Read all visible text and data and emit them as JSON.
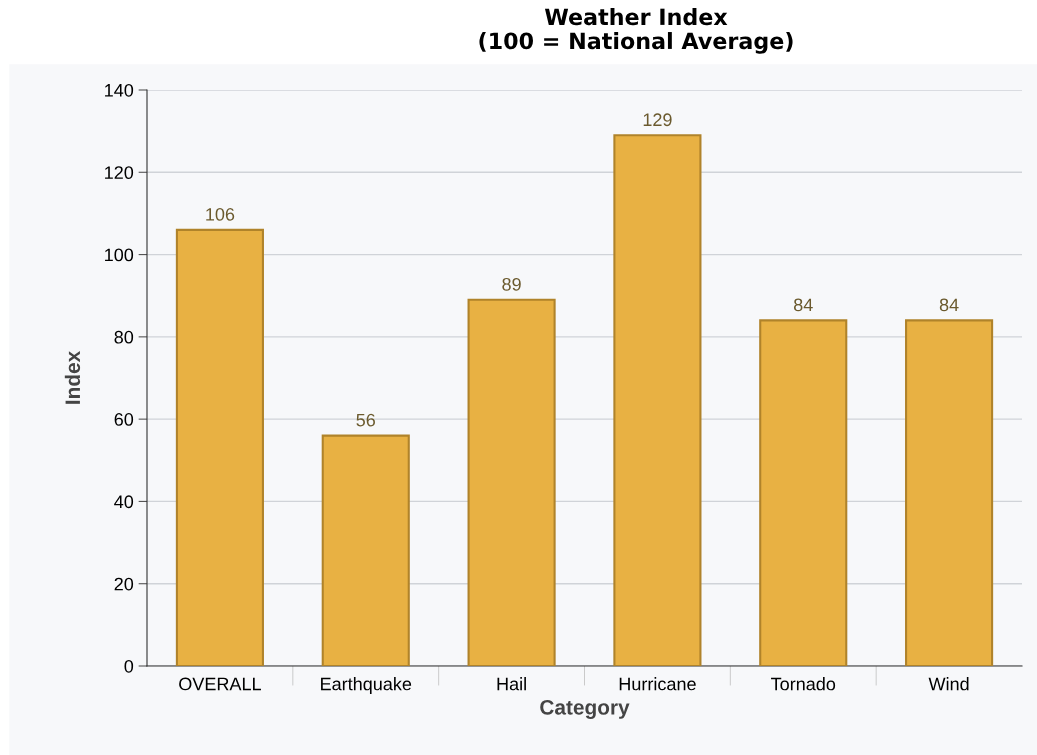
{
  "chart_data": {
    "type": "bar",
    "title": "Weather Index\n(100 = National Average)",
    "xlabel": "Category",
    "ylabel": "Index",
    "categories": [
      "OVERALL",
      "Earthquake",
      "Hail",
      "Hurricane",
      "Tornado",
      "Wind"
    ],
    "values": [
      106,
      56,
      89,
      129,
      84,
      84
    ],
    "color": "#e8b143",
    "ylim": [
      0,
      140
    ],
    "yticks": [
      0,
      20,
      40,
      60,
      80,
      100,
      120,
      140
    ],
    "grid": "y",
    "data_labels": true
  }
}
